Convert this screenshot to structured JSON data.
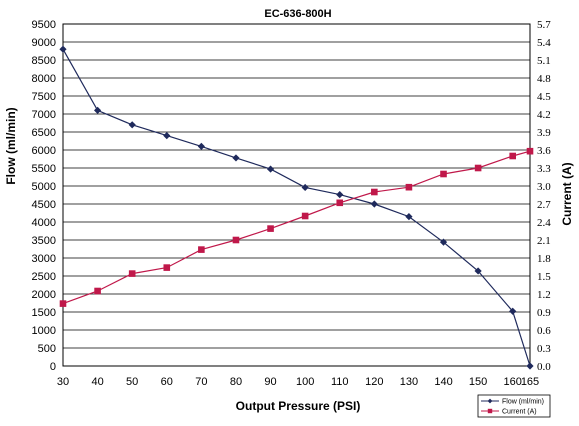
{
  "chart_data": {
    "type": "line",
    "title": "EC-636-800H",
    "xlabel": "Output Pressure (PSI)",
    "ylabel": "Flow (ml/min)",
    "y2label": "Current (A)",
    "x": [
      30,
      40,
      50,
      60,
      70,
      80,
      90,
      100,
      110,
      120,
      130,
      140,
      150,
      160,
      165
    ],
    "xlim": [
      30,
      165
    ],
    "x_ticks": [
      30,
      40,
      50,
      60,
      70,
      80,
      90,
      100,
      110,
      120,
      130,
      140,
      150,
      160,
      165
    ],
    "ylim": [
      0,
      9500
    ],
    "y_ticks": [
      0,
      500,
      1000,
      1500,
      2000,
      2500,
      3000,
      3500,
      4000,
      4500,
      5000,
      5500,
      6000,
      6500,
      7000,
      7500,
      8000,
      8500,
      9000,
      9500
    ],
    "y2lim": [
      0,
      5.7
    ],
    "y2_ticks": [
      "0.0",
      "0.3",
      "0.6",
      "0.9",
      "1.2",
      "1.5",
      "1.8",
      "2.1",
      "2.4",
      "2.7",
      "3.0",
      "3.3",
      "3.6",
      "3.9",
      "4.2",
      "4.5",
      "4.8",
      "5.1",
      "5.4",
      "5.7"
    ],
    "grid": "horizontal",
    "legend_position": "bottom-right",
    "series": [
      {
        "name": "Flow (ml/min)",
        "axis": "left",
        "marker": "diamond",
        "color": "#1f2a5c",
        "x": [
          30,
          40,
          50,
          60,
          70,
          80,
          90,
          100,
          110,
          120,
          130,
          140,
          150,
          160,
          165
        ],
        "values": [
          8800,
          7100,
          6700,
          6400,
          6100,
          5780,
          5470,
          4960,
          4760,
          4500,
          4150,
          3440,
          2640,
          1520,
          0
        ]
      },
      {
        "name": "Current (A)",
        "axis": "right",
        "marker": "square",
        "color": "#c0184a",
        "x": [
          30,
          40,
          50,
          60,
          70,
          80,
          90,
          100,
          110,
          120,
          130,
          140,
          150,
          160,
          165
        ],
        "values": [
          1.04,
          1.25,
          1.54,
          1.64,
          1.94,
          2.1,
          2.29,
          2.5,
          2.72,
          2.9,
          2.98,
          3.2,
          3.3,
          3.5,
          3.58
        ]
      }
    ]
  }
}
